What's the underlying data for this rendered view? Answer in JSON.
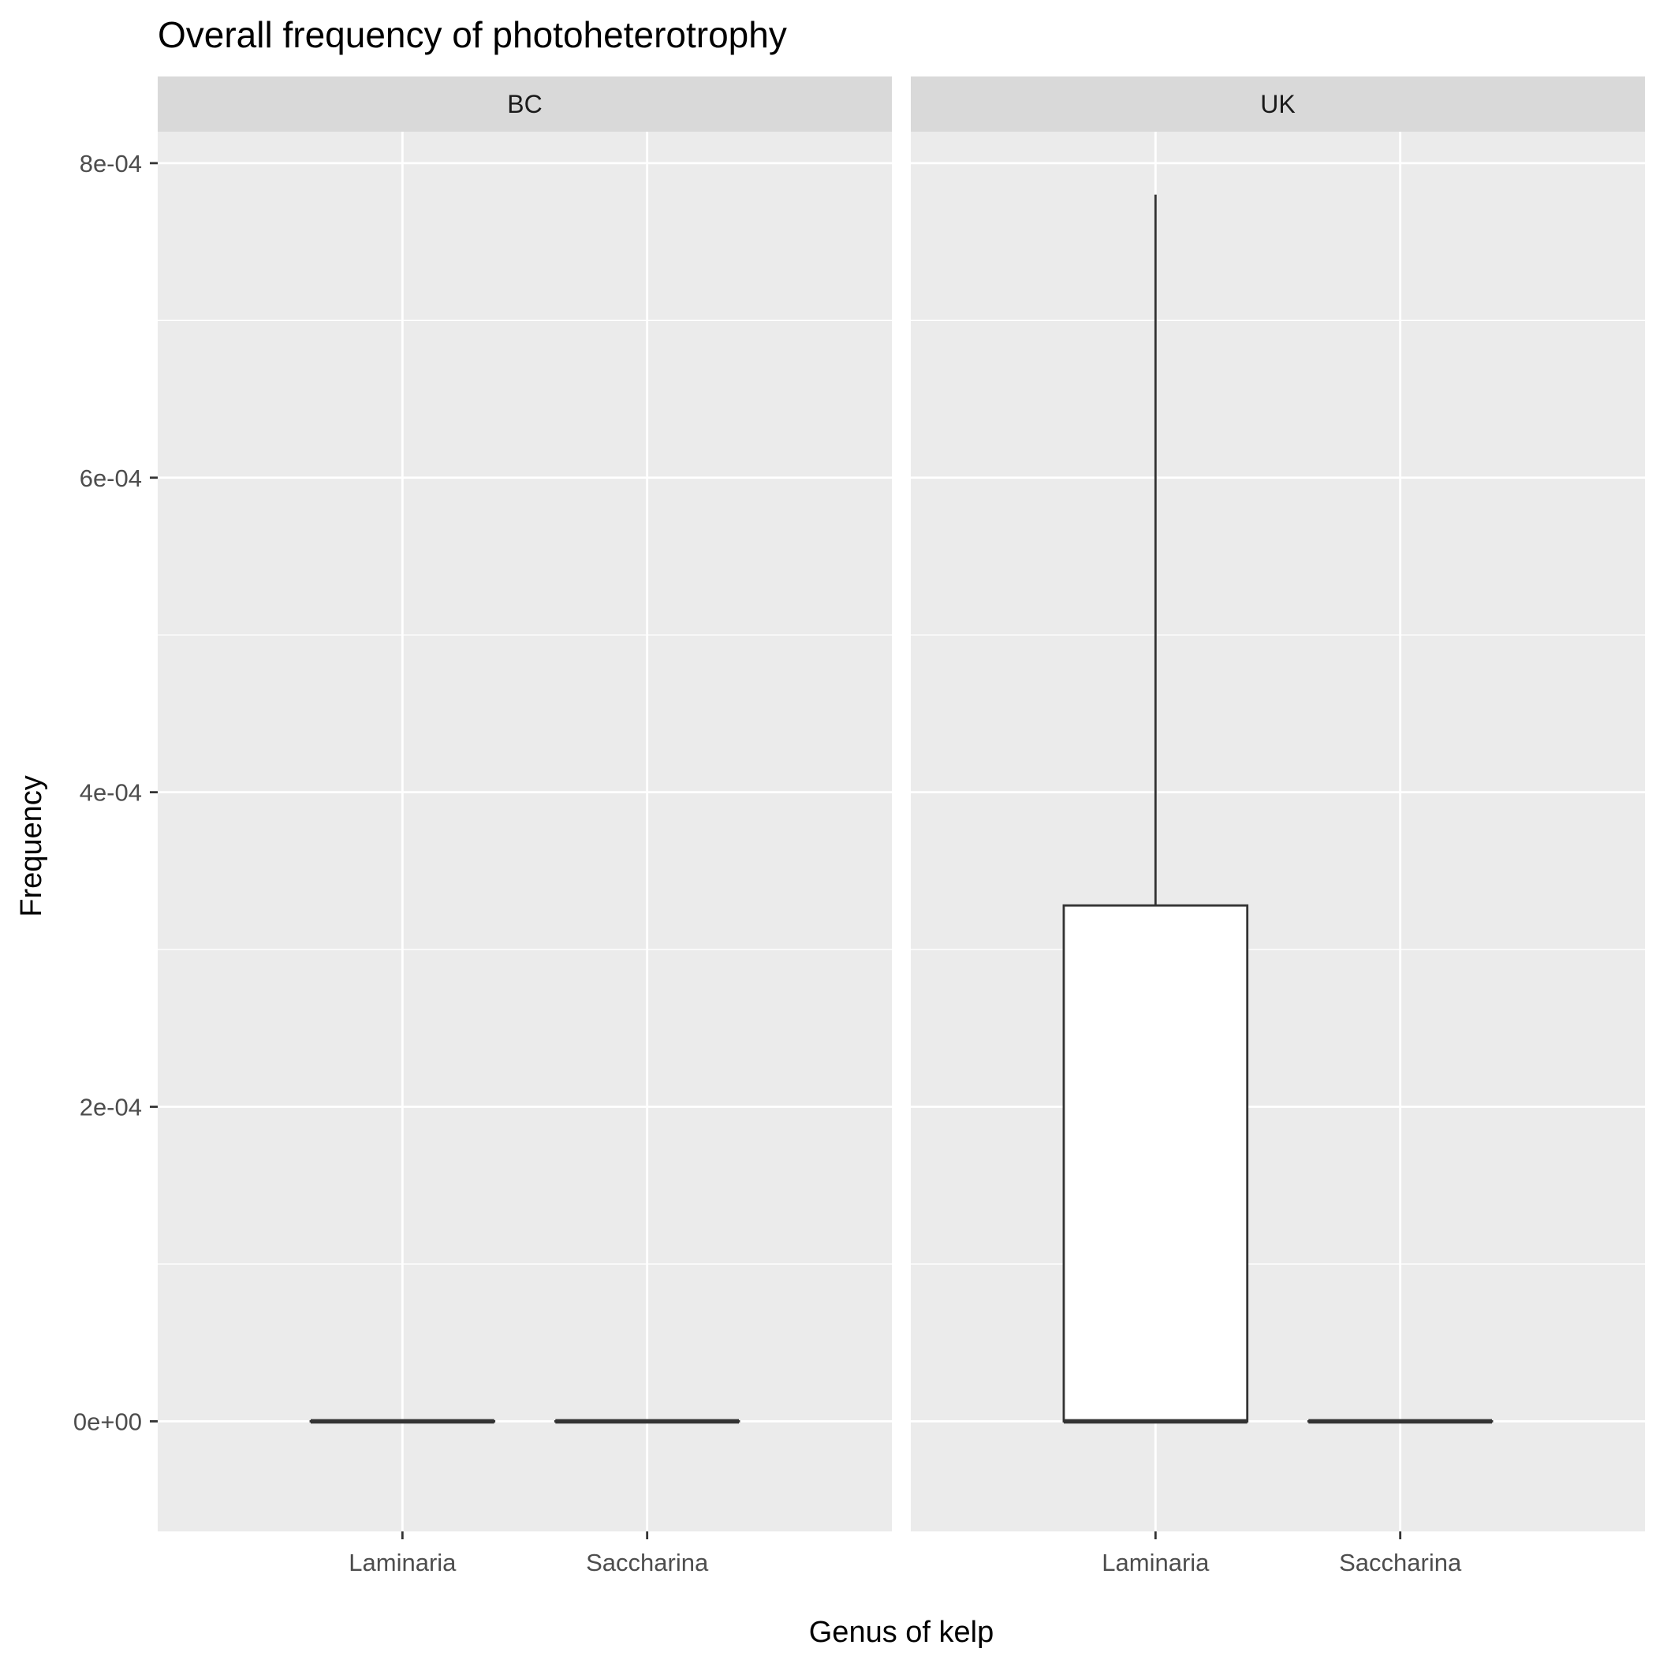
{
  "chart_data": {
    "type": "boxplot",
    "title": "Overall frequency of photoheterotrophy",
    "xlabel": "Genus of kelp",
    "ylabel": "Frequency",
    "ylim": [
      -7e-05,
      0.00082
    ],
    "yticks": [
      0,
      0.0002,
      0.0004,
      0.0006,
      0.0008
    ],
    "ytick_labels": [
      "0e+00",
      "2e-04",
      "4e-04",
      "6e-04",
      "8e-04"
    ],
    "categories": [
      "Laminaria",
      "Saccharina"
    ],
    "grid": true,
    "panels": [
      {
        "name": "BC",
        "boxes": [
          {
            "category": "Laminaria",
            "min": 0,
            "q1": 0,
            "median": 0,
            "q3": 0,
            "max": 0
          },
          {
            "category": "Saccharina",
            "min": 0,
            "q1": 0,
            "median": 0,
            "q3": 0,
            "max": 0
          }
        ]
      },
      {
        "name": "UK",
        "boxes": [
          {
            "category": "Laminaria",
            "min": 0,
            "q1": 0,
            "median": 0,
            "q3": 0.000328,
            "max": 0.00078
          },
          {
            "category": "Saccharina",
            "min": 0,
            "q1": 0,
            "median": 0,
            "q3": 0,
            "max": 0
          }
        ]
      }
    ]
  },
  "colors": {
    "panel_background": "#ebebeb",
    "strip_background": "#d9d9d9",
    "grid": "#ffffff",
    "box_fill": "#ffffff",
    "box_stroke": "#333333",
    "tick": "#333333"
  }
}
